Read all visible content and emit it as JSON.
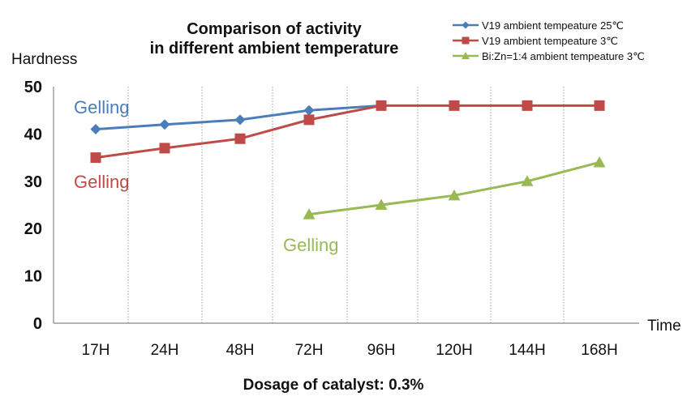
{
  "chart_data": {
    "type": "line",
    "title": [
      "Comparison of activity",
      "in different ambient temperature"
    ],
    "ylabel": "Hardness",
    "xlabel": "Time",
    "ylim": [
      0,
      50
    ],
    "yticks": [
      "0",
      "10",
      "20",
      "30",
      "40",
      "50"
    ],
    "categories": [
      "17H",
      "24H",
      "48H",
      "72H",
      "96H",
      "120H",
      "144H",
      "168H"
    ],
    "grid": "vertical-dotted",
    "legend_position": "top-right",
    "series": [
      {
        "name": "V19 ambient tempeature 25℃",
        "color": "#4a7ebb",
        "marker": "diamond",
        "values": [
          41,
          42,
          43,
          45,
          46,
          null,
          null,
          null
        ]
      },
      {
        "name": "V19 ambient tempeature 3℃",
        "color": "#be4b48",
        "marker": "square",
        "values": [
          35,
          37,
          39,
          43,
          46,
          46,
          46,
          46
        ]
      },
      {
        "name": "Bi:Zn=1:4  ambient tempeature 3℃",
        "color": "#98b954",
        "marker": "triangle",
        "values": [
          null,
          null,
          null,
          23,
          25,
          27,
          30,
          34
        ]
      }
    ],
    "annotations": [
      {
        "text": "Gelling",
        "series": 0
      },
      {
        "text": "Gelling",
        "series": 1
      },
      {
        "text": "Gelling",
        "series": 2
      }
    ],
    "footer": "Dosage of catalyst: 0.3%"
  }
}
